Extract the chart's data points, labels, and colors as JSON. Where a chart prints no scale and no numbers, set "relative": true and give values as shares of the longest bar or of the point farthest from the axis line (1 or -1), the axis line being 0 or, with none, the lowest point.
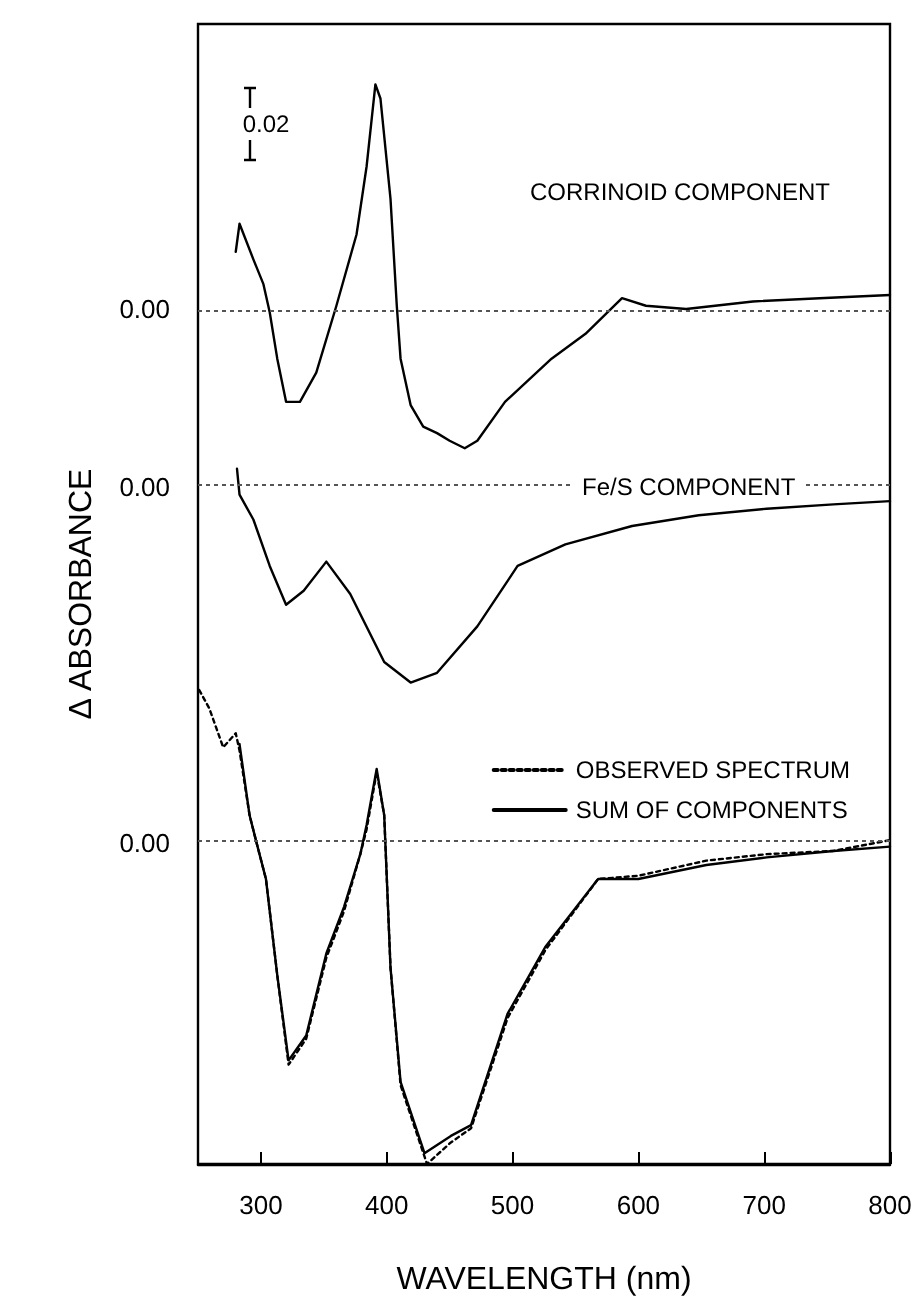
{
  "chart_data": {
    "type": "line",
    "xlabel": "WAVELENGTH (nm)",
    "ylabel": "Δ ABSORBANCE",
    "xlim": [
      250,
      800
    ],
    "xticks": [
      300,
      400,
      500,
      600,
      700,
      800
    ],
    "relative": true,
    "grid": false,
    "legend": "right",
    "marker": "none",
    "series": [
      {
        "color": "#000000",
        "line_style": "solid",
        "x": [
          280,
          283,
          294,
          302,
          307,
          313,
          320,
          331,
          344,
          360,
          376,
          384,
          391,
          395,
          403,
          408,
          411,
          419,
          429,
          440,
          450,
          462,
          472,
          494,
          531,
          558,
          587,
          606,
          638,
          691,
          744,
          800
        ],
        "values": [
          0.845,
          0.871,
          0.838,
          0.815,
          0.789,
          0.746,
          0.706,
          0.706,
          0.733,
          0.795,
          0.861,
          0.924,
          1,
          0.987,
          0.894,
          0.795,
          0.746,
          0.703,
          0.683,
          0.677,
          0.67,
          0.663,
          0.67,
          0.706,
          0.746,
          0.769,
          0.802,
          0.795,
          0.792,
          0.799,
          0.802,
          0.805
        ]
      },
      {
        "color": "#000000",
        "line_style": "solid",
        "x": [
          281,
          283,
          294,
          307,
          320,
          334,
          352,
          371,
          398,
          419,
          440,
          472,
          504,
          542,
          595,
          648,
          702,
          755,
          800
        ],
        "values": [
          0.644,
          0.62,
          0.597,
          0.554,
          0.518,
          0.531,
          0.558,
          0.528,
          0.465,
          0.446,
          0.455,
          0.498,
          0.554,
          0.574,
          0.591,
          0.601,
          0.607,
          0.611,
          0.614
        ]
      },
      {
        "name": "OBSERVED SPECTRUM",
        "color": "#000000",
        "line_style": "dotted",
        "x": [
          251,
          259,
          270,
          280,
          283,
          291,
          296,
          304,
          313,
          322,
          336,
          352,
          366,
          379,
          384,
          392,
          398,
          403,
          411,
          432,
          451,
          467,
          496,
          526,
          568,
          600,
          654,
          702,
          755,
          800
        ],
        "values": [
          0.439,
          0.422,
          0.386,
          0.399,
          0.383,
          0.323,
          0.3,
          0.264,
          0.175,
          0.092,
          0.116,
          0.191,
          0.234,
          0.287,
          0.31,
          0.363,
          0.323,
          0.182,
          0.073,
          0,
          0.02,
          0.033,
          0.135,
          0.198,
          0.264,
          0.267,
          0.281,
          0.287,
          0.29,
          0.3
        ]
      },
      {
        "name": "SUM OF COMPONENTS",
        "color": "#000000",
        "line_style": "solid",
        "x": [
          283,
          291,
          296,
          304,
          313,
          322,
          336,
          352,
          366,
          379,
          384,
          392,
          398,
          403,
          411,
          430,
          451,
          467,
          496,
          526,
          568,
          600,
          654,
          702,
          755,
          800
        ],
        "values": [
          0.389,
          0.323,
          0.3,
          0.264,
          0.175,
          0.096,
          0.119,
          0.195,
          0.238,
          0.287,
          0.314,
          0.366,
          0.323,
          0.182,
          0.076,
          0.01,
          0.026,
          0.036,
          0.139,
          0.201,
          0.264,
          0.264,
          0.277,
          0.284,
          0.29,
          0.294
        ]
      }
    ],
    "ref_lines": [
      {
        "axis": "y",
        "value": 0.792,
        "color": "#555555",
        "line_style": "dotted"
      },
      {
        "axis": "y",
        "value": 0.627,
        "color": "#555555",
        "line_style": "dotted"
      },
      {
        "axis": "y",
        "value": 0.297,
        "color": "#555555",
        "line_style": "dotted"
      }
    ],
    "annotations": [
      "CORRINOID COMPONENT",
      {
        "text": "Fe/S COMPONENT",
        "x": 640,
        "y": 0.627
      },
      "0.02",
      "0.00",
      "0.00",
      "0.00"
    ]
  }
}
